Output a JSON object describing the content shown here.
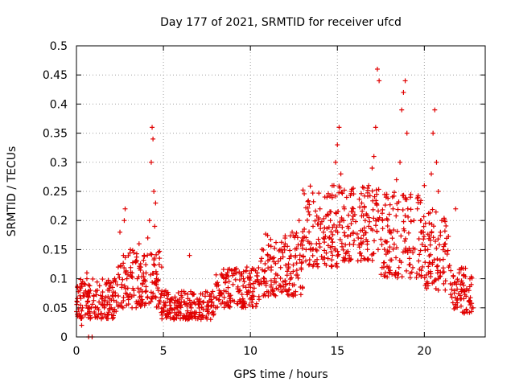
{
  "chart_data": {
    "type": "scatter",
    "title": "Day 177 of 2021, SRMTID for receiver ufcd",
    "xlabel": "GPS time / hours",
    "ylabel": "SRMTID / TECUs",
    "xlim": [
      0,
      23.5
    ],
    "ylim": [
      0,
      0.5
    ],
    "x_ticks": [
      0,
      5,
      10,
      15,
      20
    ],
    "y_ticks": [
      0,
      0.05,
      0.1,
      0.15,
      0.2,
      0.25,
      0.3,
      0.35,
      0.4,
      0.45,
      0.5
    ],
    "x_tick_labels": [
      "0",
      "5",
      "10",
      "15",
      "20"
    ],
    "y_tick_labels": [
      "0",
      "0.05",
      "0.1",
      "0.15",
      "0.2",
      "0.25",
      "0.3",
      "0.35",
      "0.4",
      "0.45",
      "0.5"
    ],
    "grid": true,
    "marker": "+",
    "series": [
      {
        "name": "SRMTID",
        "color": "#e00000",
        "x": [
          0.05,
          0.15,
          0.2,
          0.3,
          0.35,
          0.45,
          0.5,
          0.6,
          0.65,
          0.7,
          0.8,
          0.85,
          0.9,
          1.0,
          0.6,
          1.1,
          1.2,
          1.3,
          1.4,
          1.5,
          1.6,
          1.7,
          1.8,
          1.9,
          2.0,
          2.1,
          2.2,
          2.3,
          2.4,
          2.5,
          2.6,
          2.7,
          2.75,
          2.8,
          2.9,
          3.0,
          3.1,
          3.2,
          3.3,
          3.4,
          3.5,
          3.6,
          3.7,
          3.8,
          3.9,
          4.0,
          4.1,
          4.2,
          4.3,
          4.35,
          4.4,
          4.45,
          4.5,
          4.55,
          4.6,
          4.7,
          4.8,
          4.9,
          5.0,
          5.2,
          5.4,
          5.6,
          5.8,
          6.0,
          6.2,
          6.4,
          6.5,
          6.6,
          6.8,
          7.0,
          7.2,
          7.4,
          7.6,
          7.8,
          8.0,
          8.2,
          8.4,
          8.6,
          8.8,
          9.0,
          9.2,
          9.4,
          9.6,
          9.8,
          10.0,
          10.2,
          10.4,
          10.6,
          10.8,
          11.0,
          11.2,
          11.4,
          11.6,
          11.8,
          12.0,
          12.2,
          12.4,
          12.6,
          12.8,
          13.0,
          13.2,
          13.4,
          13.6,
          13.8,
          14.0,
          14.2,
          14.4,
          14.6,
          14.8,
          14.9,
          15.0,
          15.1,
          15.2,
          15.4,
          15.6,
          15.8,
          16.0,
          16.2,
          16.4,
          16.6,
          16.8,
          17.0,
          17.1,
          17.2,
          17.3,
          17.4,
          17.6,
          17.8,
          18.0,
          18.2,
          18.4,
          18.6,
          18.7,
          18.8,
          18.9,
          19.0,
          19.2,
          19.4,
          19.6,
          19.8,
          20.0,
          20.2,
          20.4,
          20.5,
          20.6,
          20.7,
          20.8,
          21.0,
          21.2,
          21.4,
          21.6,
          21.8,
          22.0,
          22.2,
          22.4,
          22.6,
          22.8
        ],
        "y": [
          0.06,
          0.04,
          0.08,
          0.02,
          0.05,
          0.07,
          0.09,
          0.1,
          0.06,
          0.0,
          0.08,
          0.05,
          0.0,
          0.07,
          0.11,
          0.05,
          0.08,
          0.06,
          0.04,
          0.07,
          0.05,
          0.09,
          0.06,
          0.08,
          0.05,
          0.07,
          0.1,
          0.06,
          0.12,
          0.18,
          0.09,
          0.14,
          0.2,
          0.22,
          0.1,
          0.07,
          0.15,
          0.11,
          0.08,
          0.13,
          0.1,
          0.16,
          0.12,
          0.09,
          0.14,
          0.11,
          0.17,
          0.2,
          0.3,
          0.36,
          0.34,
          0.25,
          0.19,
          0.23,
          0.1,
          0.08,
          0.06,
          0.12,
          0.05,
          0.04,
          0.06,
          0.03,
          0.05,
          0.04,
          0.06,
          0.03,
          0.14,
          0.05,
          0.04,
          0.06,
          0.05,
          0.07,
          0.04,
          0.06,
          0.05,
          0.08,
          0.06,
          0.1,
          0.07,
          0.09,
          0.11,
          0.08,
          0.1,
          0.12,
          0.09,
          0.07,
          0.11,
          0.13,
          0.1,
          0.14,
          0.12,
          0.1,
          0.13,
          0.15,
          0.16,
          0.12,
          0.18,
          0.14,
          0.2,
          0.17,
          0.15,
          0.21,
          0.19,
          0.16,
          0.22,
          0.18,
          0.24,
          0.2,
          0.26,
          0.3,
          0.33,
          0.36,
          0.28,
          0.22,
          0.19,
          0.25,
          0.21,
          0.17,
          0.23,
          0.2,
          0.26,
          0.29,
          0.31,
          0.36,
          0.46,
          0.44,
          0.2,
          0.24,
          0.18,
          0.22,
          0.27,
          0.3,
          0.39,
          0.42,
          0.44,
          0.35,
          0.24,
          0.2,
          0.22,
          0.18,
          0.26,
          0.15,
          0.28,
          0.35,
          0.39,
          0.3,
          0.25,
          0.2,
          0.16,
          0.12,
          0.09,
          0.22,
          0.11,
          0.08,
          0.07,
          0.06,
          0.05
        ]
      }
    ],
    "dense_band": [
      {
        "x_from": 0.0,
        "x_to": 2.4,
        "y_lo": 0.03,
        "y_hi": 0.1
      },
      {
        "x_from": 2.4,
        "x_to": 4.8,
        "y_lo": 0.05,
        "y_hi": 0.15
      },
      {
        "x_from": 4.8,
        "x_to": 8.0,
        "y_lo": 0.03,
        "y_hi": 0.08
      },
      {
        "x_from": 8.0,
        "x_to": 10.5,
        "y_lo": 0.05,
        "y_hi": 0.12
      },
      {
        "x_from": 10.5,
        "x_to": 13.0,
        "y_lo": 0.07,
        "y_hi": 0.18
      },
      {
        "x_from": 13.0,
        "x_to": 15.0,
        "y_lo": 0.12,
        "y_hi": 0.26
      },
      {
        "x_from": 15.0,
        "x_to": 17.5,
        "y_lo": 0.13,
        "y_hi": 0.26
      },
      {
        "x_from": 17.5,
        "x_to": 20.0,
        "y_lo": 0.1,
        "y_hi": 0.25
      },
      {
        "x_from": 20.0,
        "x_to": 21.5,
        "y_lo": 0.08,
        "y_hi": 0.22
      },
      {
        "x_from": 21.5,
        "x_to": 22.8,
        "y_lo": 0.04,
        "y_hi": 0.12
      }
    ]
  }
}
